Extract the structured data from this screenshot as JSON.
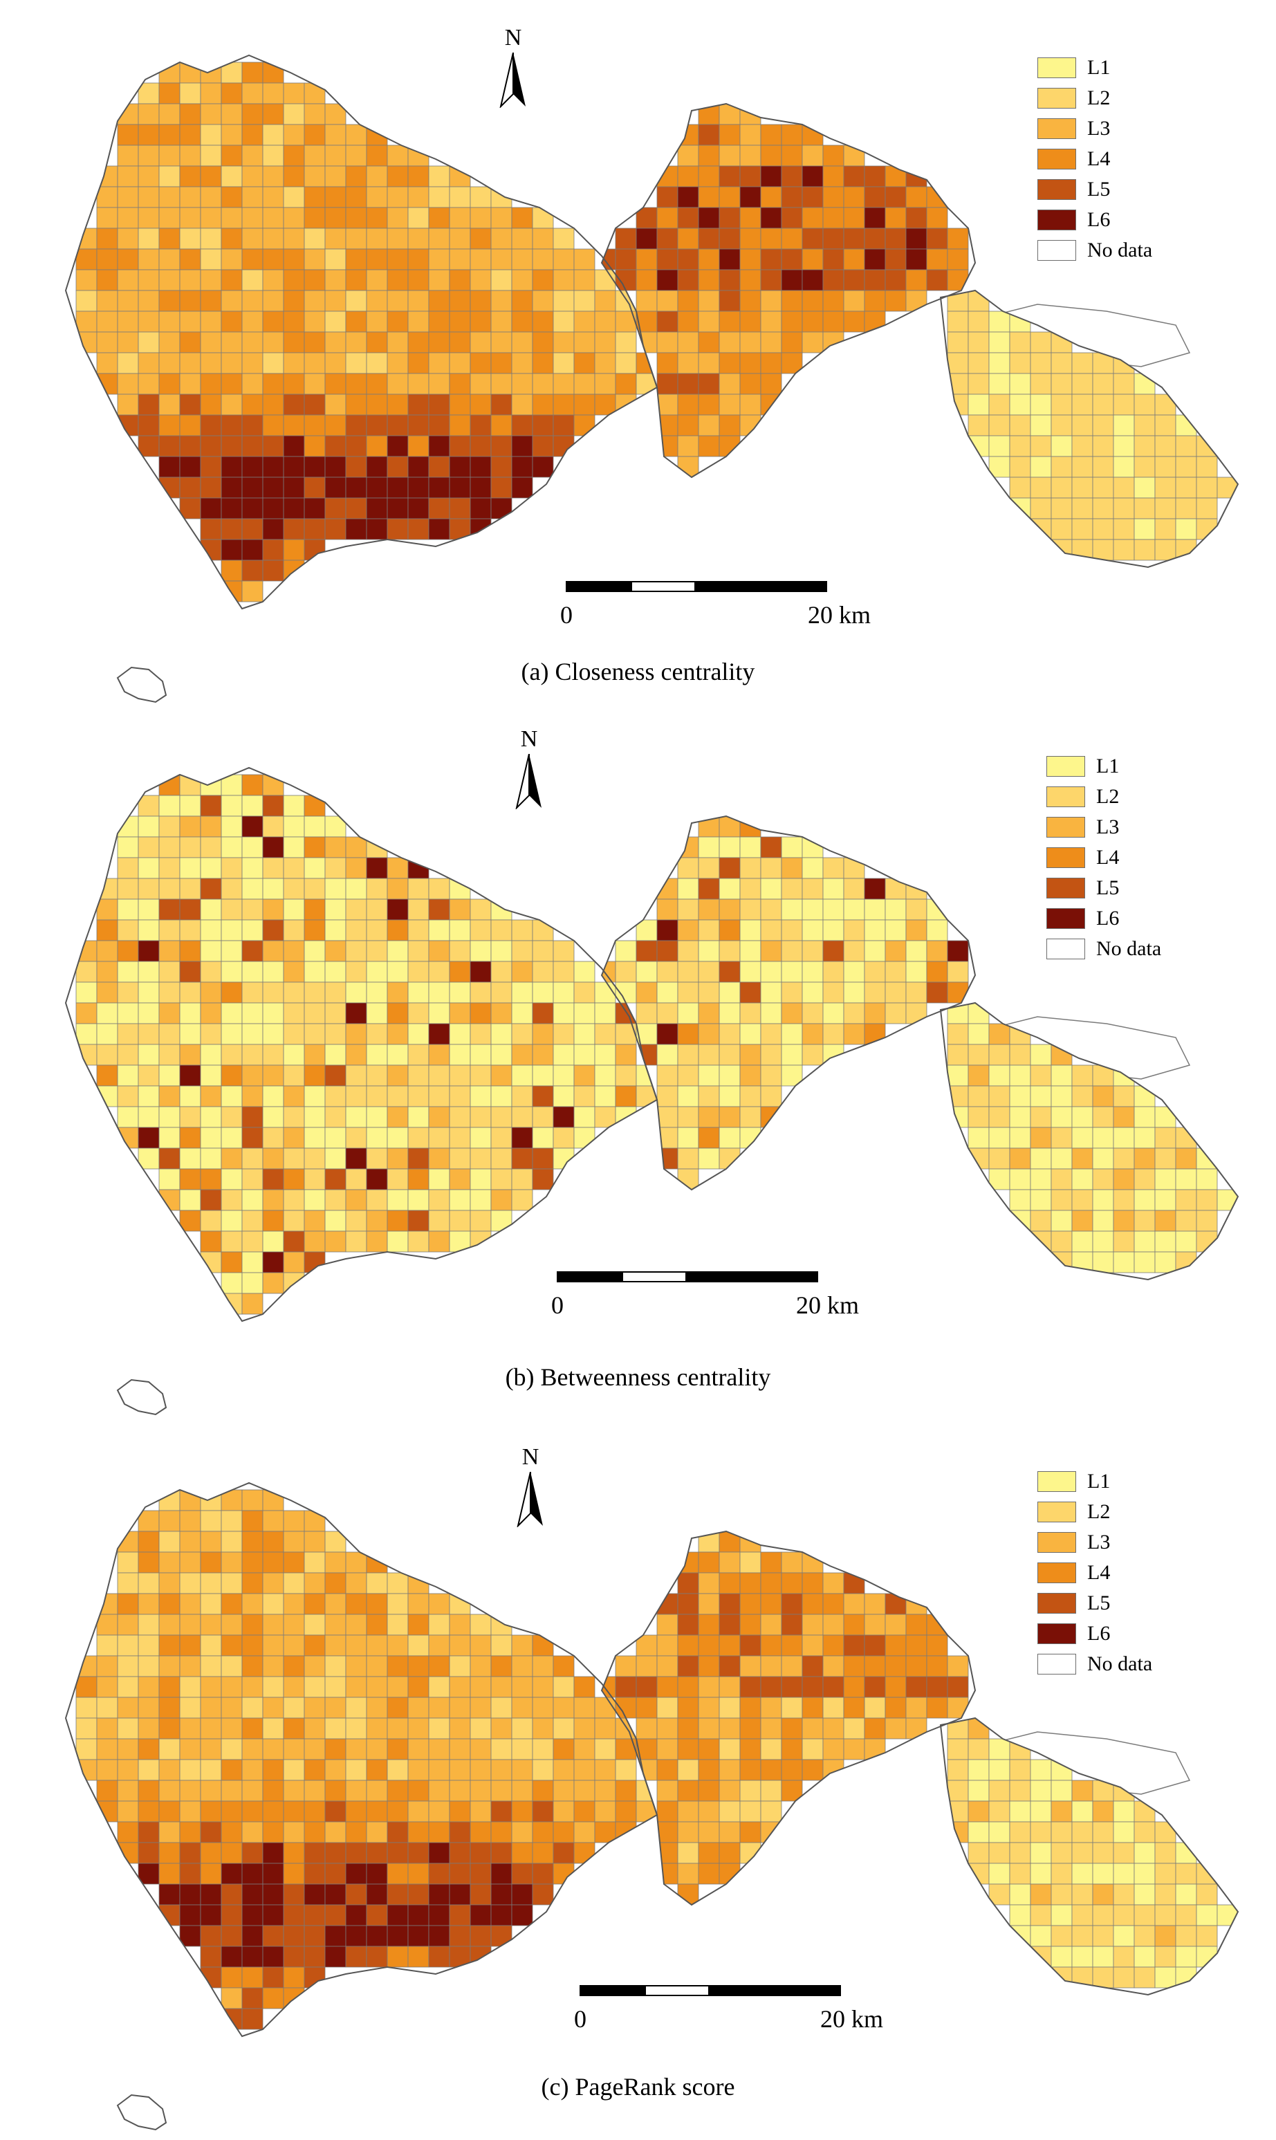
{
  "colors": {
    "L1": "#fdf68c",
    "L2": "#fdd66b",
    "L3": "#f9b440",
    "L4": "#ee8d1a",
    "L5": "#c35413",
    "L6": "#7a1006",
    "no_data": "#ffffff",
    "boundary": "#7a7a7a"
  },
  "north_label": "N",
  "legend": {
    "items": [
      {
        "label": "L1",
        "color": "#fdf68c"
      },
      {
        "label": "L2",
        "color": "#fdd66b"
      },
      {
        "label": "L3",
        "color": "#f9b440"
      },
      {
        "label": "L4",
        "color": "#ee8d1a"
      },
      {
        "label": "L5",
        "color": "#c35413"
      },
      {
        "label": "L6",
        "color": "#7a1006"
      },
      {
        "label": "No data",
        "color": "#ffffff"
      }
    ]
  },
  "scale": {
    "start_label": "0",
    "end_label": "20 km"
  },
  "panels": [
    {
      "caption": "(a) Closeness centrality"
    },
    {
      "caption": "(b) Betweenness centrality"
    },
    {
      "caption": "(c) PageRank score"
    }
  ]
}
